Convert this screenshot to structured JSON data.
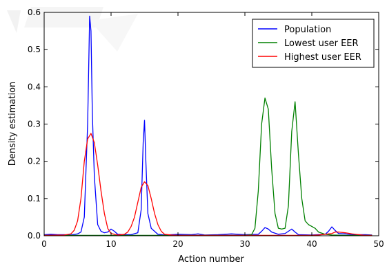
{
  "chart_data": {
    "type": "line",
    "title": "",
    "xlabel": "Action number",
    "ylabel": "Density estimation",
    "xlim": [
      0,
      50
    ],
    "ylim": [
      0,
      0.6
    ],
    "xticks": [
      "0",
      "10",
      "20",
      "30",
      "40",
      "50"
    ],
    "yticks": [
      "0.0",
      "0.1",
      "0.2",
      "0.3",
      "0.4",
      "0.5",
      "0.6"
    ],
    "grid": false,
    "legend_position": "top-right",
    "series": [
      {
        "name": "Population",
        "color": "#0000ff",
        "x": [
          0,
          1,
          2,
          3,
          4,
          5,
          5.5,
          6,
          6.5,
          6.8,
          7,
          7.2,
          7.5,
          8,
          8.5,
          9,
          9.5,
          10,
          10.5,
          11,
          12,
          13,
          14,
          14.5,
          14.8,
          15,
          15.2,
          15.5,
          16,
          17,
          18,
          20,
          22,
          23,
          24,
          26,
          28,
          30,
          32,
          32.5,
          33,
          33.5,
          34,
          35,
          36,
          36.5,
          37,
          37.5,
          38,
          40,
          42,
          42.5,
          43,
          43.5,
          44,
          45,
          46,
          48,
          49
        ],
        "y": [
          0.003,
          0.004,
          0.003,
          0.003,
          0.002,
          0.005,
          0.01,
          0.05,
          0.3,
          0.59,
          0.55,
          0.33,
          0.16,
          0.03,
          0.012,
          0.008,
          0.01,
          0.018,
          0.012,
          0.004,
          0.003,
          0.003,
          0.008,
          0.07,
          0.25,
          0.31,
          0.2,
          0.06,
          0.02,
          0.004,
          0.002,
          0.004,
          0.003,
          0.005,
          0.002,
          0.003,
          0.005,
          0.003,
          0.004,
          0.012,
          0.022,
          0.018,
          0.01,
          0.004,
          0.006,
          0.012,
          0.018,
          0.01,
          0.003,
          0.002,
          0.004,
          0.012,
          0.024,
          0.014,
          0.006,
          0.005,
          0.003,
          0.003,
          0.002
        ]
      },
      {
        "name": "Lowest user EER",
        "color": "#008000",
        "x": [
          0,
          5,
          10,
          20,
          25,
          30,
          31,
          31.5,
          32,
          32.5,
          33,
          33.5,
          34,
          34.5,
          35,
          35.5,
          36,
          36.5,
          37,
          37.5,
          38,
          38.5,
          39,
          39.5,
          40,
          40.5,
          41,
          42,
          43,
          45,
          47,
          49
        ],
        "y": [
          0.001,
          0.001,
          0.001,
          0.001,
          0.001,
          0.001,
          0.003,
          0.02,
          0.12,
          0.3,
          0.37,
          0.34,
          0.18,
          0.06,
          0.02,
          0.018,
          0.02,
          0.08,
          0.28,
          0.36,
          0.22,
          0.1,
          0.04,
          0.03,
          0.025,
          0.02,
          0.01,
          0.004,
          0.002,
          0.001,
          0.001,
          0.001
        ]
      },
      {
        "name": "Highest user EER",
        "color": "#ff0000",
        "x": [
          0,
          3,
          4,
          4.5,
          5,
          5.5,
          6,
          6.5,
          7,
          7.5,
          8,
          8.5,
          9,
          9.5,
          10,
          11,
          12,
          12.5,
          13,
          13.5,
          14,
          14.5,
          15,
          15.5,
          16,
          16.5,
          17,
          17.5,
          18,
          19,
          20,
          22,
          24,
          26,
          28,
          30,
          32,
          34,
          36,
          38,
          40,
          41,
          42,
          43,
          43.5,
          44,
          45,
          46,
          47,
          48,
          49
        ],
        "y": [
          0.001,
          0.002,
          0.005,
          0.015,
          0.04,
          0.1,
          0.2,
          0.26,
          0.275,
          0.25,
          0.19,
          0.12,
          0.06,
          0.02,
          0.006,
          0.002,
          0.004,
          0.01,
          0.025,
          0.05,
          0.09,
          0.13,
          0.145,
          0.135,
          0.1,
          0.06,
          0.03,
          0.012,
          0.004,
          0.002,
          0.001,
          0.001,
          0.001,
          0.001,
          0.001,
          0.001,
          0.001,
          0.001,
          0.001,
          0.001,
          0.001,
          0.002,
          0.004,
          0.006,
          0.01,
          0.01,
          0.008,
          0.005,
          0.003,
          0.001,
          0.001
        ]
      }
    ]
  }
}
